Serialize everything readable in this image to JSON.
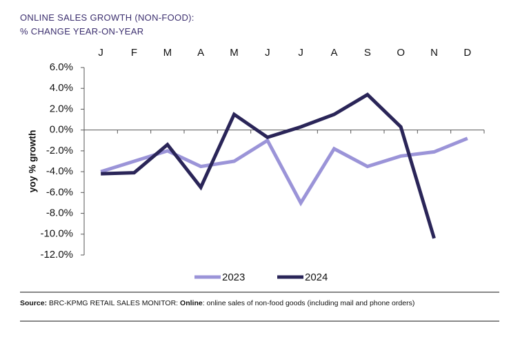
{
  "chart_data": {
    "type": "line",
    "title": "ONLINE SALES GROWTH (NON-FOOD):",
    "subtitle": "% CHANGE YEAR-ON-YEAR",
    "y_label": "yoy % growth",
    "categories": [
      "J",
      "F",
      "M",
      "A",
      "M",
      "J",
      "J",
      "A",
      "S",
      "O",
      "N",
      "D"
    ],
    "series": [
      {
        "name": "2023",
        "color": "#9b94d8",
        "values": [
          -4.0,
          -3.0,
          -2.0,
          -3.5,
          -3.0,
          -1.0,
          -7.0,
          -1.8,
          -3.5,
          -2.5,
          -2.1,
          -0.8
        ]
      },
      {
        "name": "2024",
        "color": "#2a2558",
        "values": [
          -4.2,
          -4.1,
          -1.4,
          -5.5,
          1.5,
          -0.7,
          0.3,
          1.5,
          3.4,
          0.3,
          -10.4,
          null
        ]
      }
    ],
    "ylim": [
      -12,
      6
    ],
    "yticks": [
      {
        "value": 6,
        "label": "6.0%"
      },
      {
        "value": 4,
        "label": "4.0%"
      },
      {
        "value": 2,
        "label": "2.0%"
      },
      {
        "value": 0,
        "label": "0.0%"
      },
      {
        "value": -2,
        "label": "-2.0%"
      },
      {
        "value": -4,
        "label": "-4.0%"
      },
      {
        "value": -6,
        "label": "-6.0%"
      },
      {
        "value": -8,
        "label": "-8.0%"
      },
      {
        "value": -10,
        "label": "-10.0%"
      },
      {
        "value": -12,
        "label": "-12.0%"
      }
    ],
    "grid": false,
    "legend": "bottom",
    "footnote": [
      "Source:",
      "BRC-KPMG RETAIL SALES MONITOR:",
      "Online",
      ": online sales of non-food goods (including mail and phone orders)"
    ]
  }
}
